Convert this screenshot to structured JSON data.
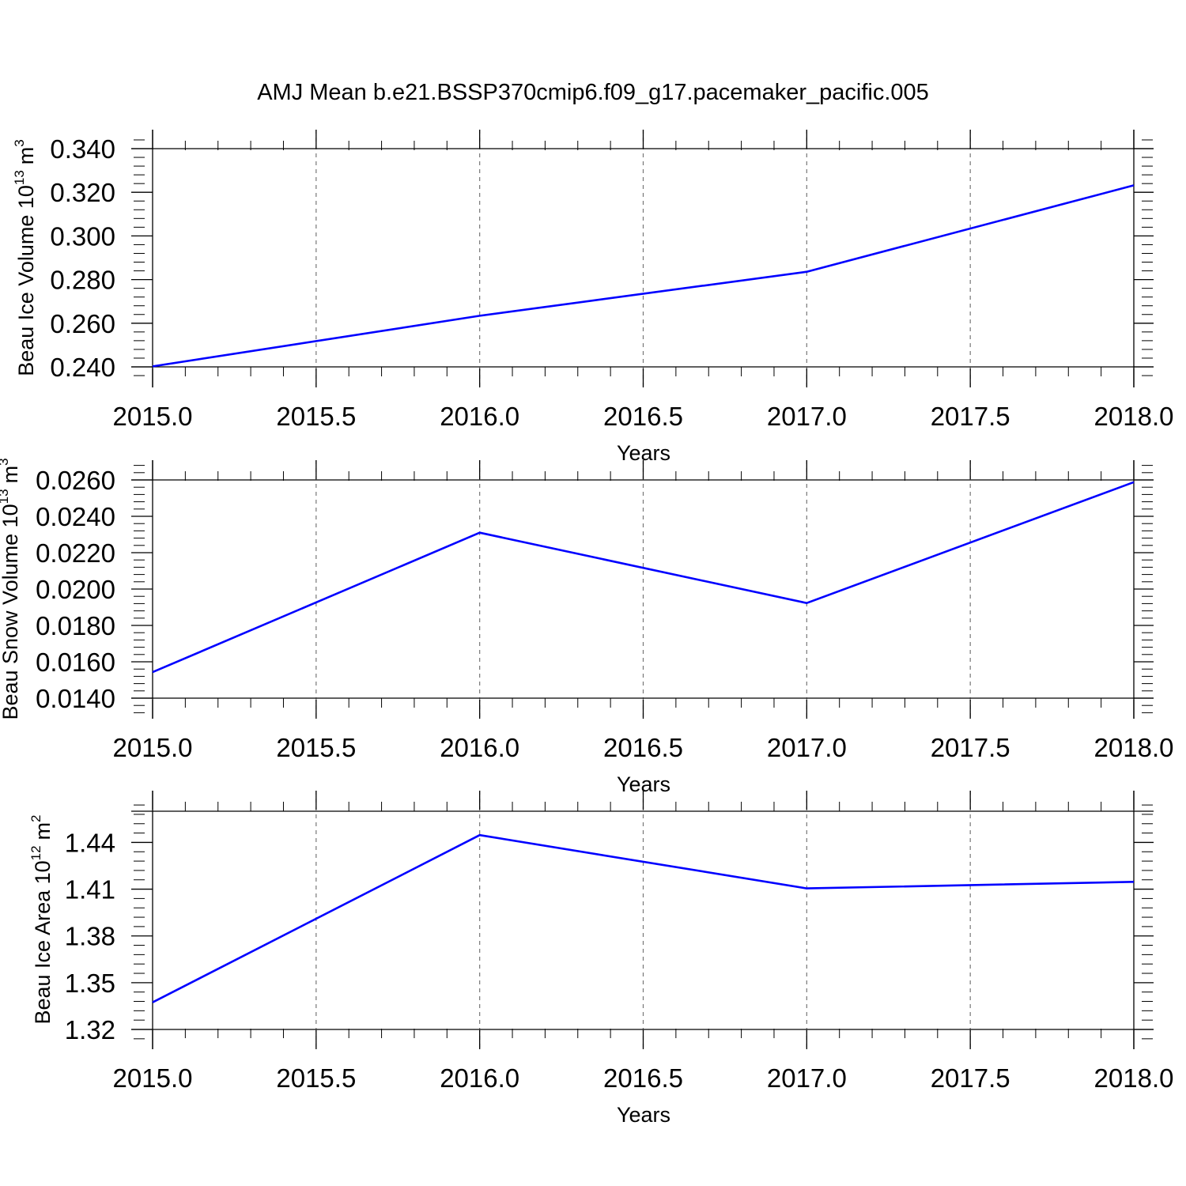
{
  "title": "AMJ Mean b.e21.BSSP370cmip6.f09_g17.pacemaker_pacific.005",
  "chart_data": [
    {
      "type": "line",
      "xlabel": "Years",
      "ylabel": {
        "text": "Beau Ice Volume 10",
        "sup": "13",
        "unit": "m",
        "unit_sup": "3"
      },
      "x": [
        2015,
        2016,
        2017,
        2018
      ],
      "series": [
        {
          "values": [
            0.2402,
            0.2634,
            0.2836,
            0.3232
          ],
          "color": "#0000ff"
        }
      ],
      "xlim": [
        2015,
        2018
      ],
      "ylim": [
        0.24,
        0.34
      ],
      "xticks": [
        "2015.0",
        "2015.5",
        "2016.0",
        "2016.5",
        "2017.0",
        "2017.5",
        "2018.0"
      ],
      "yticks": [
        "0.240",
        "0.260",
        "0.280",
        "0.300",
        "0.320",
        "0.340"
      ],
      "grid": "vertical dashed"
    },
    {
      "type": "line",
      "xlabel": "Years",
      "ylabel": {
        "text": "Beau Snow Volume 10",
        "sup": "13",
        "unit": "m",
        "unit_sup": "3"
      },
      "x": [
        2015,
        2016,
        2017,
        2018
      ],
      "series": [
        {
          "values": [
            0.01543,
            0.0231,
            0.01923,
            0.02588
          ],
          "color": "#0000ff"
        }
      ],
      "xlim": [
        2015,
        2018
      ],
      "ylim": [
        0.014,
        0.026
      ],
      "xticks": [
        "2015.0",
        "2015.5",
        "2016.0",
        "2016.5",
        "2017.0",
        "2017.5",
        "2018.0"
      ],
      "yticks": [
        "0.0140",
        "0.0160",
        "0.0180",
        "0.0200",
        "0.0220",
        "0.0240",
        "0.0260"
      ],
      "grid": "vertical dashed"
    },
    {
      "type": "line",
      "xlabel": "Years",
      "ylabel": {
        "text": "Beau Ice Area 10",
        "sup": "12",
        "unit": "m",
        "unit_sup": "2"
      },
      "x": [
        2015,
        2016,
        2017,
        2018
      ],
      "series": [
        {
          "values": [
            1.3374,
            1.4447,
            1.4105,
            1.4147
          ],
          "color": "#0000ff"
        }
      ],
      "xlim": [
        2015,
        2018
      ],
      "ylim": [
        1.32,
        1.46
      ],
      "xticks": [
        "2015.0",
        "2015.5",
        "2016.0",
        "2016.5",
        "2017.0",
        "2017.5",
        "2018.0"
      ],
      "yticks": [
        "1.32",
        "1.35",
        "1.38",
        "1.41",
        "1.44"
      ],
      "ytick_values": [
        1.32,
        1.35,
        1.38,
        1.41,
        1.44
      ],
      "grid": "vertical dashed"
    }
  ]
}
